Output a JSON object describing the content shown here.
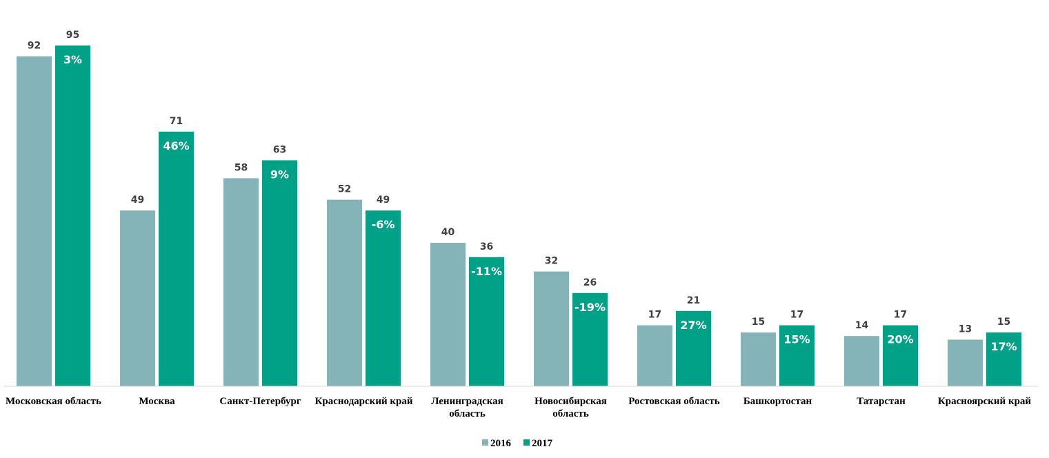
{
  "chart_data": {
    "type": "bar",
    "categories": [
      [
        "Московская область"
      ],
      [
        "Москва"
      ],
      [
        "Санкт-Петербург"
      ],
      [
        "Краснодарский край"
      ],
      [
        "Ленинградская",
        "область"
      ],
      [
        "Новосибирская",
        "область"
      ],
      [
        "Ростовская область"
      ],
      [
        "Башкортостан"
      ],
      [
        "Татарстан"
      ],
      [
        "Красноярский край"
      ]
    ],
    "series": [
      {
        "name": "2016",
        "color": "#84b4b7",
        "values": [
          92,
          49,
          58,
          52,
          40,
          32,
          17,
          15,
          14,
          13
        ]
      },
      {
        "name": "2017",
        "color": "#00a187",
        "values": [
          95,
          71,
          63,
          49,
          36,
          26,
          21,
          17,
          17,
          15
        ]
      }
    ],
    "change_labels": [
      "3%",
      "46%",
      "9%",
      "-6%",
      "-11%",
      "-19%",
      "27%",
      "15%",
      "20%",
      "17%"
    ],
    "ylim": [
      0,
      100
    ],
    "grid": false,
    "legend_position": "bottom"
  }
}
